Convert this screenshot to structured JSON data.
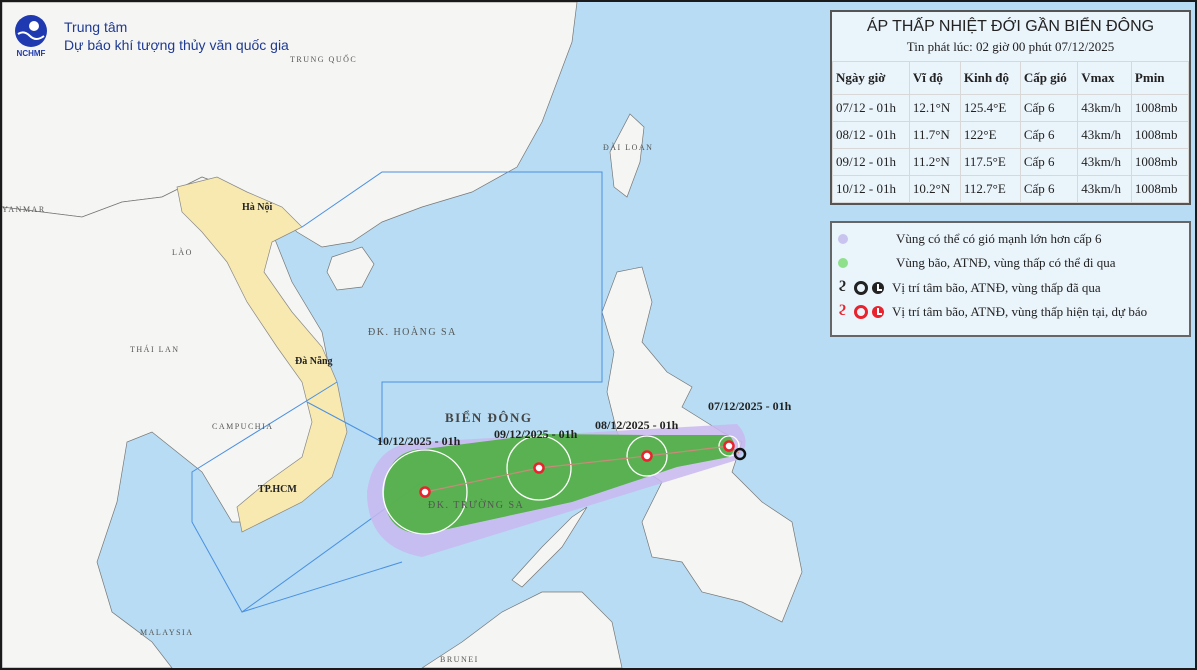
{
  "header": {
    "org_line1": "Trung tâm",
    "org_line2": "Dự báo khí tượng thủy văn quốc gia",
    "logo_text": "NCHMF"
  },
  "panel": {
    "title": "ÁP THẤP NHIỆT ĐỚI GẦN BIỂN ĐÔNG",
    "issued": "Tin phát lúc: 02 giờ 00 phút 07/12/2025",
    "columns": [
      "Ngày giờ",
      "Vĩ độ",
      "Kinh độ",
      "Cấp gió",
      "Vmax",
      "Pmin"
    ],
    "rows": [
      [
        "07/12 - 01h",
        "12.1°N",
        "125.4°E",
        "Cấp 6",
        "43km/h",
        "1008mb"
      ],
      [
        "08/12 - 01h",
        "11.7°N",
        "122°E",
        "Cấp 6",
        "43km/h",
        "1008mb"
      ],
      [
        "09/12 - 01h",
        "11.2°N",
        "117.5°E",
        "Cấp 6",
        "43km/h",
        "1008mb"
      ],
      [
        "10/12 - 01h",
        "10.2°N",
        "112.7°E",
        "Cấp 6",
        "43km/h",
        "1008mb"
      ]
    ]
  },
  "legend": [
    {
      "label": "Vùng có thể có gió mạnh lớn hơn cấp 6",
      "color": "#c9c3ef"
    },
    {
      "label": "Vùng bão, ATNĐ, vùng thấp có thể đi qua",
      "color": "#8fe08a"
    },
    {
      "label": "Vị trí tâm bão, ATNĐ, vùng thấp đã qua",
      "color": "#222222"
    },
    {
      "label": "Vị trí tâm bão, ATNĐ, vùng thấp hiện tại, dự báo",
      "color": "#e8232d"
    }
  ],
  "map": {
    "places": {
      "china": "TRUNG QUỐC",
      "taiwan": "ĐÀI LOAN",
      "myanmar": "YANMAR",
      "laos": "LÀO",
      "thailand": "THÁI LAN",
      "cambodia": "CAMPUCHIA",
      "malaysia": "MALAYSIA",
      "brunei": "BRUNEI",
      "hoang_sa": "ĐK. HOÀNG SA",
      "truong_sa": "ĐK. TRƯỜNG SA",
      "bien_dong": "BIỂN ĐÔNG"
    },
    "cities": {
      "hanoi": "Hà Nội",
      "danang": "Đà Nẵng",
      "hcm": "TP.HCM"
    },
    "track_labels": [
      "07/12/2025 - 01h",
      "08/12/2025 - 01h",
      "09/12/2025 - 01h",
      "10/12/2025 - 01h"
    ],
    "colors": {
      "ocean": "#b7dcf3",
      "land": "#f5f5f3",
      "vietnam": "#f7e9b0",
      "wind_zone": "#c9b8ee",
      "track_zone": "#4caf3f",
      "center": "#e8232d"
    }
  }
}
